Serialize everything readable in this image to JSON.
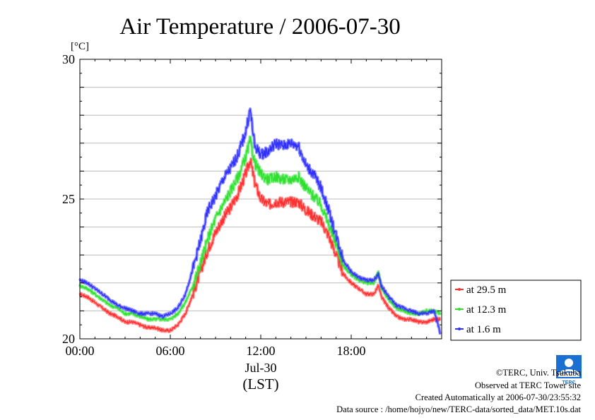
{
  "chart_data": {
    "type": "line",
    "title": "Air Temperature / 2006-07-30",
    "ylabel": "[°C]",
    "xlabel": "(LST)",
    "date_label": "Jul-30",
    "ylim": [
      20,
      30
    ],
    "xlim_hours": [
      0,
      23.9
    ],
    "y_ticks": [
      {
        "value": 20,
        "label": "20"
      },
      {
        "value": 25,
        "label": "25"
      },
      {
        "value": 30,
        "label": "30"
      }
    ],
    "x_ticks": [
      {
        "hour": 0,
        "label": "00:00"
      },
      {
        "hour": 6,
        "label": "06:00"
      },
      {
        "hour": 12,
        "label": "12:00"
      },
      {
        "hour": 18,
        "label": "18:00"
      }
    ],
    "grid": true,
    "legend_position": "lower-right-outside",
    "series": [
      {
        "name": "at 29.5 m",
        "color": "#ff3030",
        "x": [
          0,
          0.5,
          1,
          1.5,
          2,
          2.5,
          3,
          3.5,
          4,
          4.5,
          5,
          5.5,
          6,
          6.5,
          7,
          7.5,
          8,
          8.5,
          9,
          9.5,
          10,
          10.5,
          11,
          11.3,
          11.6,
          12,
          12.5,
          13,
          13.5,
          14,
          14.5,
          15,
          15.5,
          16,
          16.5,
          17,
          17.5,
          18,
          18.5,
          19,
          19.5,
          19.8,
          20,
          20.5,
          21,
          21.5,
          22,
          22.5,
          23,
          23.5,
          23.9
        ],
        "values": [
          21.6,
          21.5,
          21.3,
          21.1,
          20.9,
          20.8,
          20.6,
          20.6,
          20.5,
          20.4,
          20.4,
          20.3,
          20.3,
          20.5,
          20.9,
          21.6,
          22.4,
          23.2,
          23.8,
          24.3,
          24.7,
          25.2,
          25.9,
          26.4,
          25.6,
          25.0,
          24.8,
          24.9,
          24.9,
          24.9,
          24.9,
          24.6,
          24.4,
          24.2,
          23.7,
          23.0,
          22.3,
          22.0,
          21.8,
          21.6,
          21.6,
          21.9,
          21.5,
          21.1,
          20.8,
          20.7,
          20.7,
          20.6,
          20.6,
          20.7,
          20.7
        ]
      },
      {
        "name": "at 12.3 m",
        "color": "#30e030",
        "x": [
          0,
          0.5,
          1,
          1.5,
          2,
          2.5,
          3,
          3.5,
          4,
          4.5,
          5,
          5.5,
          6,
          6.5,
          7,
          7.5,
          8,
          8.5,
          9,
          9.5,
          10,
          10.5,
          11,
          11.3,
          11.6,
          12,
          12.5,
          13,
          13.5,
          14,
          14.5,
          15,
          15.5,
          16,
          16.5,
          17,
          17.5,
          18,
          18.5,
          19,
          19.5,
          19.8,
          20,
          20.5,
          21,
          21.5,
          22,
          22.5,
          23,
          23.5,
          23.9
        ],
        "values": [
          21.9,
          21.8,
          21.6,
          21.4,
          21.2,
          21.1,
          20.9,
          20.9,
          20.8,
          20.7,
          20.7,
          20.7,
          20.7,
          20.9,
          21.3,
          21.9,
          22.7,
          23.6,
          24.3,
          24.8,
          25.3,
          25.8,
          26.5,
          27.1,
          26.3,
          25.9,
          25.7,
          25.8,
          25.7,
          25.7,
          25.8,
          25.4,
          25.1,
          24.8,
          24.1,
          23.4,
          22.6,
          22.3,
          22.1,
          22.0,
          22.0,
          22.4,
          21.8,
          21.4,
          21.1,
          21.0,
          20.9,
          20.9,
          21.0,
          21.0,
          20.9
        ]
      },
      {
        "name": "at 1.6 m",
        "color": "#3030ff",
        "x": [
          0,
          0.5,
          1,
          1.5,
          2,
          2.5,
          3,
          3.5,
          4,
          4.5,
          5,
          5.5,
          6,
          6.5,
          7,
          7.5,
          8,
          8.5,
          9,
          9.5,
          10,
          10.5,
          11,
          11.3,
          11.6,
          12,
          12.5,
          13,
          13.5,
          14,
          14.5,
          15,
          15.5,
          16,
          16.5,
          17,
          17.5,
          18,
          18.5,
          19,
          19.5,
          19.8,
          20,
          20.5,
          21,
          21.5,
          22,
          22.5,
          23,
          23.5,
          23.9
        ],
        "values": [
          22.1,
          22.0,
          21.8,
          21.6,
          21.4,
          21.2,
          21.1,
          21.0,
          20.9,
          20.9,
          20.9,
          20.8,
          20.9,
          21.1,
          21.6,
          22.5,
          23.5,
          24.6,
          25.1,
          25.7,
          26.1,
          26.6,
          27.4,
          28.2,
          26.9,
          26.6,
          26.7,
          27.0,
          26.9,
          27.0,
          26.9,
          26.2,
          25.9,
          25.4,
          24.6,
          23.7,
          22.8,
          22.4,
          22.2,
          22.1,
          22.1,
          22.3,
          21.9,
          21.5,
          21.2,
          21.1,
          21.0,
          20.9,
          20.9,
          21.0,
          20.2
        ]
      }
    ]
  },
  "footer": {
    "copyright": "©TERC, Univ. Tsukuba",
    "observed": "Observed at TERC Tower site",
    "created": "Created Automatically at 2006-07-30/23:55:32",
    "source": "Data source : /home/hojyo/new/TERC-data/sorted_data/MET.10s.dat"
  },
  "logo": {
    "text": "TERC",
    "color": "#1a6fd0",
    "name": "terc-logo-icon"
  }
}
